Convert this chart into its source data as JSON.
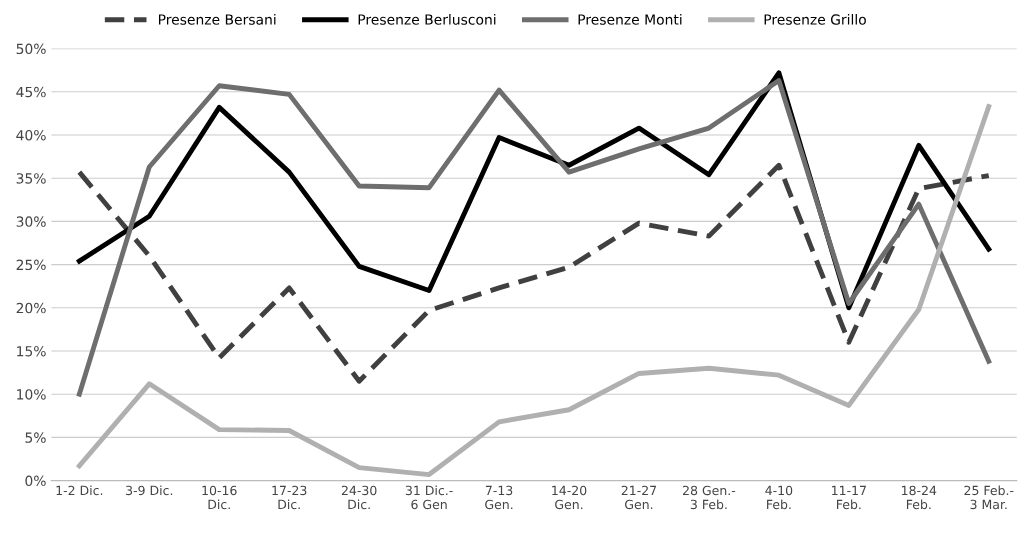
{
  "chart_data": {
    "type": "line",
    "categories": [
      "1-2 Dic.",
      "3-9 Dic.",
      "10-16\nDic.",
      "17-23\nDic.",
      "24-30\nDic.",
      "31 Dic.-\n6 Gen",
      "7-13\nGen.",
      "14-20\nGen.",
      "21-27\nGen.",
      "28 Gen.-\n3 Feb.",
      "4-10\nFeb.",
      "11-17\nFeb.",
      "18-24\nFeb.",
      "25 Feb.-\n3 Mar."
    ],
    "series": [
      {
        "name": "Presenze Bersani",
        "color": "#404040",
        "line_style": "dashed",
        "values": [
          35.7,
          26,
          14.2,
          22.3,
          11.5,
          19.7,
          22.3,
          24.7,
          29.8,
          28.3,
          36.5,
          16,
          33.8,
          35.3
        ]
      },
      {
        "name": "Presenze Berlusconi",
        "color": "#000000",
        "line_style": "solid",
        "values": [
          25.4,
          30.6,
          43.2,
          35.7,
          24.8,
          22,
          39.7,
          36.5,
          40.8,
          35.4,
          47.2,
          20,
          38.8,
          26.8
        ]
      },
      {
        "name": "Presenze Monti",
        "color": "#6e6e6e",
        "line_style": "solid",
        "values": [
          10,
          36.3,
          45.7,
          44.7,
          34.1,
          33.9,
          45.2,
          35.7,
          38.4,
          40.8,
          46.3,
          20.5,
          32,
          13.8
        ]
      },
      {
        "name": "Presenze Grillo",
        "color": "#b0b0b0",
        "line_style": "solid",
        "values": [
          1.7,
          11.2,
          5.9,
          5.8,
          1.5,
          0.7,
          6.8,
          8.2,
          12.4,
          13,
          12.2,
          8.7,
          19.8,
          43.3
        ]
      }
    ],
    "ylim": [
      0,
      50
    ],
    "yticks": [
      {
        "value": 0,
        "label": "0%"
      },
      {
        "value": 5,
        "label": "5%"
      },
      {
        "value": 10,
        "label": "10%"
      },
      {
        "value": 15,
        "label": "15%"
      },
      {
        "value": 20,
        "label": "20%"
      },
      {
        "value": 25,
        "label": "25%"
      },
      {
        "value": 30,
        "label": "30%"
      },
      {
        "value": 35,
        "label": "35%"
      },
      {
        "value": 40,
        "label": "40%"
      },
      {
        "value": 45,
        "label": "45%"
      },
      {
        "value": 50,
        "label": "50%"
      }
    ],
    "grid": "y",
    "legend": "top",
    "marker": "none"
  }
}
